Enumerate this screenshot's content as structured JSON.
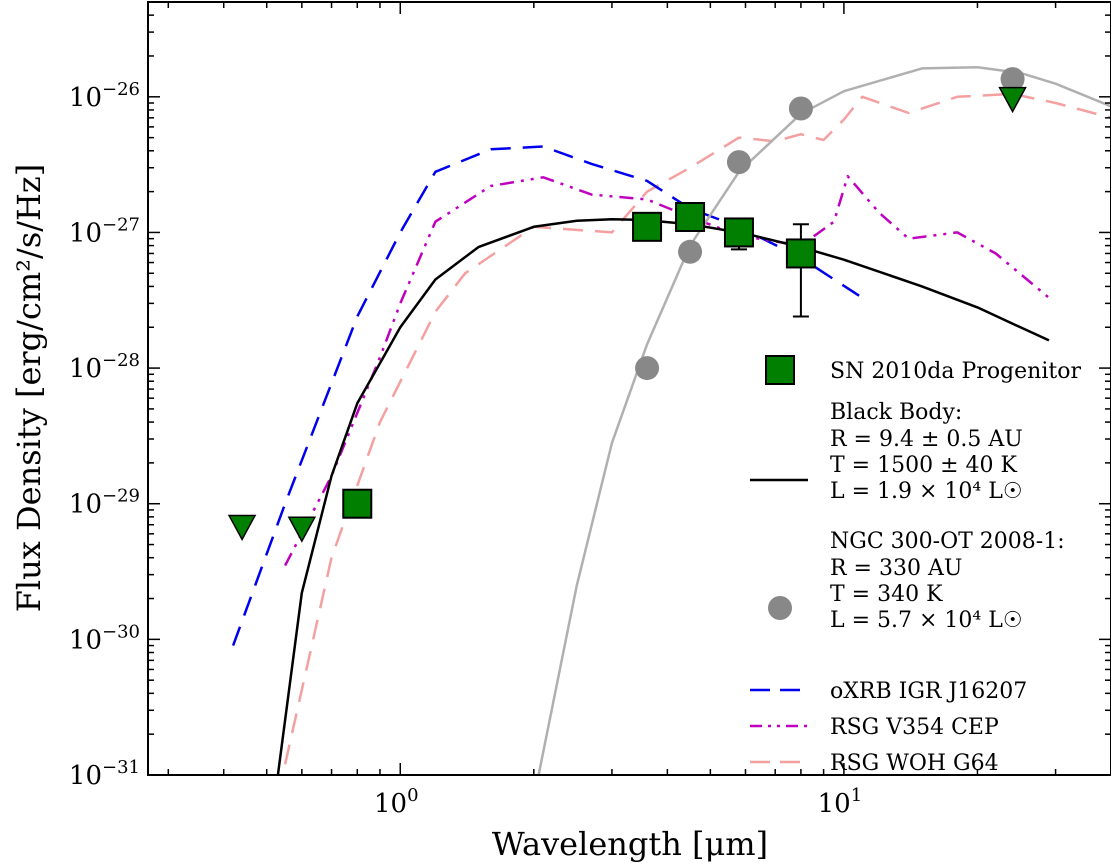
{
  "chart_data": {
    "type": "scatter",
    "xlabel": "Wavelength [μm]",
    "ylabel": "Flux Density [erg/cm²/s/Hz]",
    "x_scale": "log",
    "y_scale": "log",
    "xlim": [
      0.27,
      40
    ],
    "ylim": [
      1e-31,
      5e-26
    ],
    "x_ticks": [
      {
        "value": 1,
        "label": "10",
        "exp": "0"
      },
      {
        "value": 10,
        "label": "10",
        "exp": "1"
      }
    ],
    "y_ticks": [
      {
        "value": 1e-31,
        "label": "10",
        "exp": "−31"
      },
      {
        "value": 1e-30,
        "label": "10",
        "exp": "−30"
      },
      {
        "value": 1e-29,
        "label": "10",
        "exp": "−29"
      },
      {
        "value": 1e-28,
        "label": "10",
        "exp": "−28"
      },
      {
        "value": 1e-27,
        "label": "10",
        "exp": "−27"
      },
      {
        "value": 1e-26,
        "label": "10",
        "exp": "−26"
      }
    ],
    "grid": false,
    "legend_position": "right",
    "colors": {
      "progenitor": "#007f00",
      "blackbody": "#000000",
      "ngc300": "#888888",
      "ngc300_curve": "#b0b0b0",
      "oxrb": "#0000ee",
      "rsg_v354": "#bf00bf",
      "rsg_woh": "#f4a0a0"
    },
    "series": [
      {
        "key": "progenitor",
        "name": "SN 2010da Progenitor",
        "marker": "square",
        "points": [
          [
            0.8,
            1e-29
          ],
          [
            3.6,
            1.1e-27
          ],
          [
            4.5,
            1.3e-27
          ],
          [
            5.8,
            1e-27
          ],
          [
            8.0,
            7e-28
          ]
        ],
        "errorbars": [
          {
            "x": 5.8,
            "y": 1e-27,
            "ylow": 7.5e-28,
            "yhigh": 1e-27
          },
          {
            "x": 8.0,
            "y": 7e-28,
            "ylow": 2.4e-28,
            "yhigh": 1.15e-27
          }
        ],
        "upper_limits": [
          [
            0.44,
            6.8e-30
          ],
          [
            0.6,
            6.6e-30
          ],
          [
            24.0,
            9.7e-27
          ]
        ]
      },
      {
        "key": "blackbody",
        "name": "Black Body:",
        "name_lines": [
          "R = 9.4 ± 0.5 AU",
          "T = 1500 ± 40 K",
          "L = 1.9 × 10⁴ L☉"
        ],
        "line": "solid",
        "points": [
          [
            0.53,
            1e-31
          ],
          [
            0.6,
            2.2e-30
          ],
          [
            0.7,
            1.6e-29
          ],
          [
            0.8,
            5.5e-29
          ],
          [
            1.0,
            2e-28
          ],
          [
            1.2,
            4.5e-28
          ],
          [
            1.5,
            7.8e-28
          ],
          [
            2.0,
            1.1e-27
          ],
          [
            2.5,
            1.22e-27
          ],
          [
            3.0,
            1.25e-27
          ],
          [
            3.5,
            1.24e-27
          ],
          [
            4.5,
            1.15e-27
          ],
          [
            6.0,
            9.8e-28
          ],
          [
            8.0,
            7.8e-28
          ],
          [
            10.0,
            6.3e-28
          ],
          [
            15.0,
            4e-28
          ],
          [
            20.0,
            2.8e-28
          ],
          [
            25.0,
            2e-28
          ],
          [
            29.0,
            1.6e-28
          ]
        ]
      },
      {
        "key": "ngc300",
        "name": "NGC 300-OT 2008-1:",
        "name_lines": [
          "R = 330 AU",
          "T = 340 K",
          "L = 5.7 × 10⁴ L☉"
        ],
        "marker": "circle",
        "points": [
          [
            3.6,
            1e-28
          ],
          [
            4.5,
            7.2e-28
          ],
          [
            5.8,
            3.3e-27
          ],
          [
            8.0,
            8.2e-27
          ],
          [
            24.0,
            1.35e-26
          ]
        ],
        "curve": [
          [
            2.05,
            1e-31
          ],
          [
            2.5,
            2.5e-30
          ],
          [
            3.0,
            2.8e-29
          ],
          [
            3.6,
            1.5e-28
          ],
          [
            4.5,
            8e-28
          ],
          [
            5.8,
            2.8e-27
          ],
          [
            8.0,
            7.5e-27
          ],
          [
            10.0,
            1.1e-26
          ],
          [
            15.0,
            1.62e-26
          ],
          [
            20.0,
            1.65e-26
          ],
          [
            25.0,
            1.5e-26
          ],
          [
            30.0,
            1.25e-26
          ],
          [
            40.0,
            8.5e-27
          ]
        ]
      },
      {
        "key": "oxrb",
        "name": "oXRB IGR J16207",
        "line": "dashed",
        "points": [
          [
            0.42,
            9e-31
          ],
          [
            0.55,
            1e-29
          ],
          [
            0.8,
            2.4e-28
          ],
          [
            1.0,
            1e-27
          ],
          [
            1.2,
            2.8e-27
          ],
          [
            1.6,
            4.1e-27
          ],
          [
            2.1,
            4.3e-27
          ],
          [
            2.7,
            3.2e-27
          ],
          [
            3.6,
            2.4e-27
          ],
          [
            4.5,
            1.5e-27
          ],
          [
            5.8,
            1.1e-27
          ],
          [
            8.0,
            6.5e-28
          ],
          [
            11.0,
            3.3e-28
          ]
        ]
      },
      {
        "key": "rsg_v354",
        "name": "RSG V354 CEP",
        "line": "dashdot",
        "points": [
          [
            0.55,
            3.5e-30
          ],
          [
            0.7,
            1.6e-29
          ],
          [
            0.9,
            1.2e-28
          ],
          [
            1.0,
            3e-28
          ],
          [
            1.2,
            1.2e-27
          ],
          [
            1.6,
            2.2e-27
          ],
          [
            2.1,
            2.55e-27
          ],
          [
            2.7,
            1.9e-27
          ],
          [
            3.6,
            1.75e-27
          ],
          [
            4.5,
            1.3e-27
          ],
          [
            5.8,
            9.5e-28
          ],
          [
            8.0,
            8e-28
          ],
          [
            9.5,
            1.2e-27
          ],
          [
            10.2,
            2.6e-27
          ],
          [
            12.0,
            1.4e-27
          ],
          [
            14.0,
            9e-28
          ],
          [
            18.0,
            1e-27
          ],
          [
            22.0,
            7e-28
          ],
          [
            29.0,
            3.3e-28
          ]
        ]
      },
      {
        "key": "rsg_woh",
        "name": "RSG WOH G64",
        "line": "dashed",
        "points": [
          [
            0.55,
            1.2e-31
          ],
          [
            0.7,
            4e-30
          ],
          [
            0.9,
            4e-29
          ],
          [
            1.2,
            2.6e-28
          ],
          [
            1.4,
            5e-28
          ],
          [
            2.0,
            1.1e-27
          ],
          [
            3.0,
            1e-27
          ],
          [
            3.6,
            2e-27
          ],
          [
            4.5,
            3e-27
          ],
          [
            5.8,
            5e-27
          ],
          [
            7.0,
            4.7e-27
          ],
          [
            8.0,
            5.3e-27
          ],
          [
            9.0,
            4.8e-27
          ],
          [
            10.0,
            6.8e-27
          ],
          [
            11.0,
            1e-26
          ],
          [
            14.0,
            7.6e-27
          ],
          [
            18.0,
            1e-26
          ],
          [
            24.0,
            1.05e-26
          ],
          [
            30.0,
            9e-27
          ],
          [
            40.0,
            7e-27
          ]
        ]
      }
    ]
  }
}
